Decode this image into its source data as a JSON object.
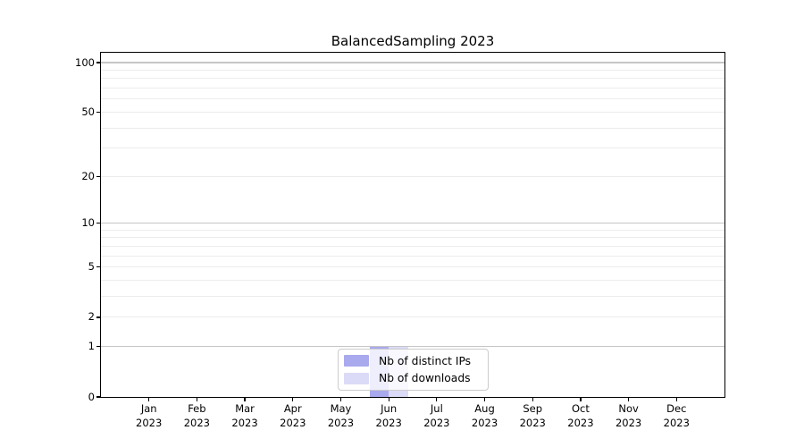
{
  "chart_data": {
    "type": "bar",
    "title": "BalancedSampling 2023",
    "categories": [
      "Jan",
      "Feb",
      "Mar",
      "Apr",
      "May",
      "Jun",
      "Jul",
      "Aug",
      "Sep",
      "Oct",
      "Nov",
      "Dec"
    ],
    "x_year_label": "2023",
    "series": [
      {
        "name": "Nb of distinct IPs",
        "color": "#a9a9ee",
        "values": [
          0,
          0,
          0,
          0,
          0,
          1,
          0,
          0,
          0,
          0,
          0,
          0
        ]
      },
      {
        "name": "Nb of downloads",
        "color": "#dbdbf7",
        "values": [
          0,
          0,
          0,
          0,
          0,
          1,
          0,
          0,
          0,
          0,
          0,
          0
        ]
      }
    ],
    "yscale": "log1p",
    "ylim": [
      0,
      115
    ],
    "ytick_labels": [
      100,
      50,
      20,
      10,
      5,
      2,
      1,
      0
    ],
    "major_grid_values": [
      100,
      10,
      1
    ],
    "minor_grid_values": [
      90,
      80,
      70,
      60,
      50,
      40,
      30,
      20,
      9,
      8,
      7,
      6,
      5,
      4,
      3,
      2
    ],
    "grid": true,
    "legend_position": "lower center",
    "xlabel": "",
    "ylabel": ""
  },
  "colors": {
    "major_grid": "#c6c6c6",
    "minor_grid": "#ececec",
    "axis": "#000000",
    "legend_border": "#cccccc"
  }
}
